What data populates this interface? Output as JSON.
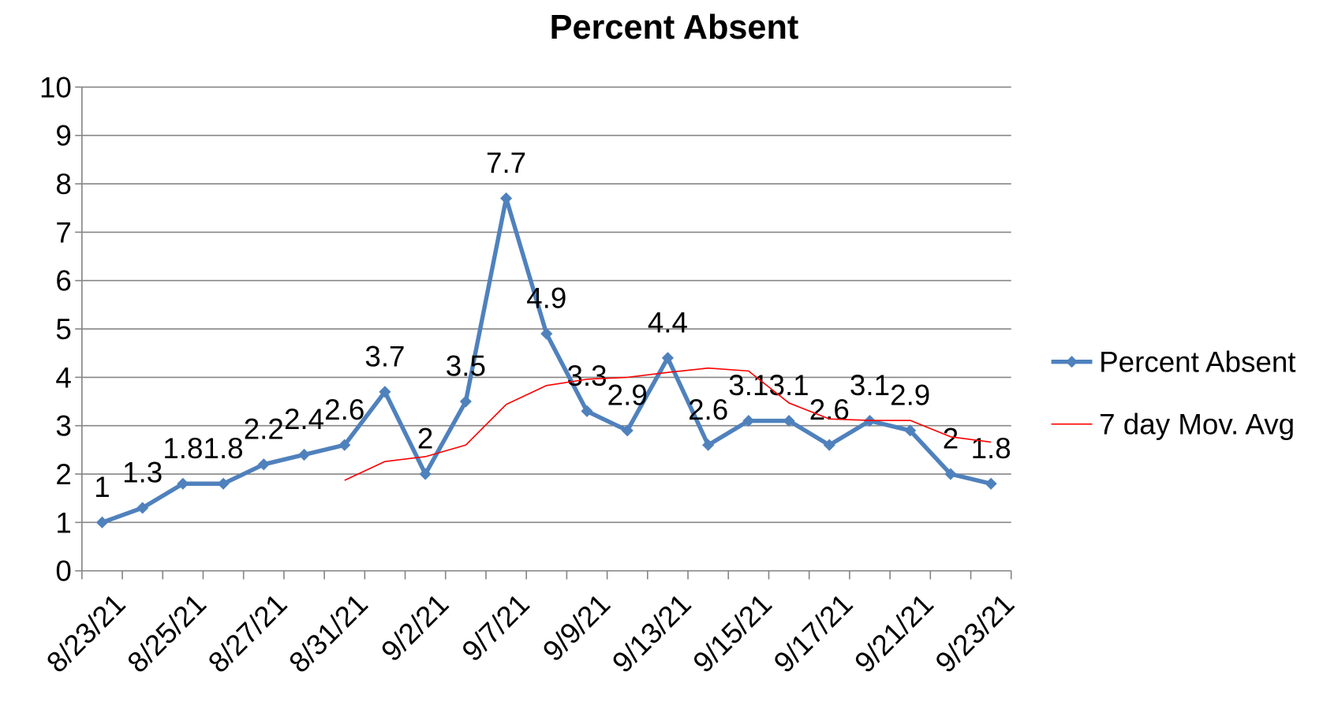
{
  "chart_data": {
    "type": "line",
    "title": "Percent Absent",
    "categories": [
      "8/23/21",
      null,
      "8/25/21",
      null,
      "8/27/21",
      null,
      "8/31/21",
      null,
      "9/2/21",
      null,
      "9/7/21",
      null,
      "9/9/21",
      null,
      "9/13/21",
      null,
      "9/15/21",
      null,
      "9/17/21",
      null,
      "9/21/21",
      null,
      "9/23/21"
    ],
    "series": [
      {
        "name": "Percent Absent",
        "color": "#4f81bd",
        "data_labels": true,
        "values": [
          1,
          1.3,
          1.8,
          1.8,
          2.2,
          2.4,
          2.6,
          3.7,
          2,
          3.5,
          7.7,
          4.9,
          3.3,
          2.9,
          4.4,
          2.6,
          3.1,
          3.1,
          2.6,
          3.1,
          2.9,
          2,
          1.8
        ]
      },
      {
        "name": "7 day Mov. Avg",
        "color": "#ff0000",
        "data_labels": false,
        "values": [
          null,
          null,
          null,
          null,
          null,
          null,
          1.87,
          2.26,
          2.36,
          2.6,
          3.44,
          3.83,
          3.96,
          4.0,
          4.1,
          4.19,
          4.13,
          3.47,
          3.14,
          3.11,
          3.11,
          2.77,
          2.66
        ]
      }
    ],
    "ylim": [
      0,
      10
    ],
    "yticks": [
      0,
      1,
      2,
      3,
      4,
      5,
      6,
      7,
      8,
      9,
      10
    ],
    "grid": true,
    "legend": "right"
  }
}
